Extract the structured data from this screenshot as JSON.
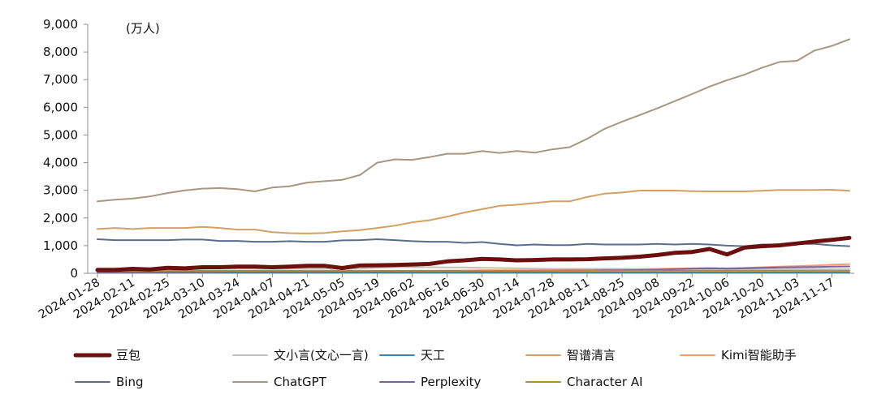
{
  "chart_data": {
    "type": "line",
    "unit_label": "(万人)",
    "ylim": [
      0,
      9000
    ],
    "y_ticks": [
      "0",
      "1,000",
      "2,000",
      "3,000",
      "4,000",
      "5,000",
      "6,000",
      "7,000",
      "8,000",
      "9,000"
    ],
    "x_tick_labels": [
      "2024-01-28",
      "2024-02-11",
      "2024-02-25",
      "2024-03-10",
      "2024-03-24",
      "2024-04-07",
      "2024-04-21",
      "2024-05-05",
      "2024-05-19",
      "2024-06-02",
      "2024-06-16",
      "2024-06-30",
      "2024-07-14",
      "2024-07-28",
      "2024-08-11",
      "2024-08-25",
      "2024-09-08",
      "2024-09-22",
      "2024-10-06",
      "2024-10-20",
      "2024-11-03",
      "2024-11-17"
    ],
    "x": [
      "2024-01-28",
      "2024-02-04",
      "2024-02-11",
      "2024-02-18",
      "2024-02-25",
      "2024-03-03",
      "2024-03-10",
      "2024-03-17",
      "2024-03-24",
      "2024-03-31",
      "2024-04-07",
      "2024-04-14",
      "2024-04-21",
      "2024-04-28",
      "2024-05-05",
      "2024-05-12",
      "2024-05-19",
      "2024-05-26",
      "2024-06-02",
      "2024-06-09",
      "2024-06-16",
      "2024-06-23",
      "2024-06-30",
      "2024-07-07",
      "2024-07-14",
      "2024-07-21",
      "2024-07-28",
      "2024-08-04",
      "2024-08-11",
      "2024-08-18",
      "2024-08-25",
      "2024-09-01",
      "2024-09-08",
      "2024-09-15",
      "2024-09-22",
      "2024-09-29",
      "2024-10-06",
      "2024-10-13",
      "2024-10-20",
      "2024-10-27",
      "2024-11-03",
      "2024-11-10",
      "2024-11-17",
      "2024-11-24"
    ],
    "grid": false,
    "legend_position": "bottom",
    "series": [
      {
        "name": "豆包",
        "color": "#6b0f0f",
        "width": 5,
        "values": [
          120,
          120,
          160,
          140,
          200,
          180,
          220,
          220,
          240,
          240,
          220,
          240,
          270,
          270,
          190,
          280,
          290,
          300,
          320,
          340,
          430,
          470,
          520,
          500,
          470,
          480,
          500,
          500,
          510,
          540,
          560,
          600,
          660,
          740,
          770,
          880,
          680,
          930,
          980,
          1010,
          1080,
          1150,
          1210,
          1280
        ]
      },
      {
        "name": "文小言(文心一言)",
        "color": "#c0c0c0",
        "width": 2,
        "values": [
          180,
          180,
          180,
          170,
          160,
          160,
          160,
          170,
          170,
          170,
          160,
          170,
          170,
          170,
          160,
          170,
          200,
          220,
          220,
          220,
          210,
          210,
          200,
          190,
          180,
          170,
          160,
          160,
          160,
          160,
          160,
          150,
          150,
          150,
          150,
          150,
          150,
          150,
          150,
          150,
          150,
          150,
          150,
          150
        ]
      },
      {
        "name": "天工",
        "color": "#3a87a8",
        "width": 2,
        "values": [
          30,
          30,
          30,
          30,
          30,
          30,
          30,
          30,
          30,
          30,
          30,
          30,
          30,
          30,
          30,
          30,
          30,
          30,
          30,
          30,
          30,
          30,
          30,
          30,
          30,
          30,
          30,
          30,
          30,
          30,
          30,
          30,
          30,
          30,
          30,
          30,
          30,
          30,
          30,
          30,
          30,
          30,
          30,
          30
        ]
      },
      {
        "name": "智谱清言",
        "color": "#d2a064",
        "width": 2,
        "values": [
          1600,
          1640,
          1600,
          1640,
          1640,
          1640,
          1680,
          1640,
          1580,
          1580,
          1490,
          1450,
          1440,
          1460,
          1520,
          1560,
          1640,
          1720,
          1840,
          1920,
          2050,
          2200,
          2320,
          2440,
          2480,
          2540,
          2600,
          2600,
          2760,
          2880,
          2920,
          2990,
          2990,
          2990,
          2970,
          2960,
          2960,
          2960,
          2980,
          3010,
          3010,
          3010,
          3020,
          2980
        ]
      },
      {
        "name": "Kimi智能助手",
        "color": "#f0a070",
        "width": 2,
        "values": [
          40,
          40,
          40,
          40,
          50,
          50,
          50,
          60,
          60,
          60,
          70,
          80,
          80,
          80,
          70,
          80,
          80,
          80,
          90,
          90,
          100,
          100,
          110,
          110,
          110,
          110,
          120,
          120,
          130,
          130,
          140,
          150,
          160,
          170,
          180,
          190,
          180,
          200,
          220,
          240,
          260,
          280,
          310,
          330
        ]
      },
      {
        "name": "Bing",
        "color": "#5a6e8c",
        "width": 2,
        "values": [
          1230,
          1200,
          1200,
          1200,
          1200,
          1220,
          1220,
          1170,
          1170,
          1140,
          1140,
          1160,
          1140,
          1140,
          1190,
          1200,
          1230,
          1200,
          1160,
          1140,
          1140,
          1100,
          1130,
          1060,
          1010,
          1040,
          1020,
          1020,
          1060,
          1040,
          1040,
          1040,
          1060,
          1040,
          1060,
          1040,
          1000,
          980,
          1040,
          1040,
          1060,
          1060,
          1010,
          980
        ]
      },
      {
        "name": "ChatGPT",
        "color": "#a89680",
        "width": 2,
        "values": [
          2600,
          2660,
          2700,
          2780,
          2900,
          3000,
          3060,
          3080,
          3040,
          2960,
          3100,
          3150,
          3280,
          3330,
          3380,
          3550,
          4000,
          4120,
          4100,
          4200,
          4320,
          4320,
          4420,
          4350,
          4420,
          4360,
          4480,
          4560,
          4860,
          5220,
          5480,
          5720,
          5960,
          6220,
          6480,
          6750,
          6980,
          7180,
          7430,
          7640,
          7680,
          8050,
          8220,
          8460
        ]
      },
      {
        "name": "Perplexity",
        "color": "#7a62a0",
        "width": 2,
        "values": [
          40,
          40,
          40,
          40,
          40,
          40,
          50,
          50,
          50,
          50,
          50,
          50,
          50,
          50,
          60,
          60,
          60,
          60,
          70,
          70,
          70,
          70,
          80,
          80,
          80,
          90,
          90,
          100,
          100,
          110,
          110,
          120,
          130,
          150,
          170,
          180,
          170,
          180,
          200,
          210,
          220,
          230,
          240,
          250
        ]
      },
      {
        "name": "Character AI",
        "color": "#b08c3c",
        "width": 2,
        "values": [
          90,
          90,
          90,
          90,
          90,
          90,
          90,
          90,
          90,
          90,
          90,
          90,
          90,
          90,
          90,
          90,
          90,
          90,
          90,
          90,
          90,
          90,
          90,
          90,
          90,
          90,
          90,
          90,
          90,
          90,
          90,
          90,
          90,
          90,
          90,
          90,
          90,
          90,
          90,
          90,
          90,
          90,
          90,
          90
        ]
      }
    ]
  }
}
